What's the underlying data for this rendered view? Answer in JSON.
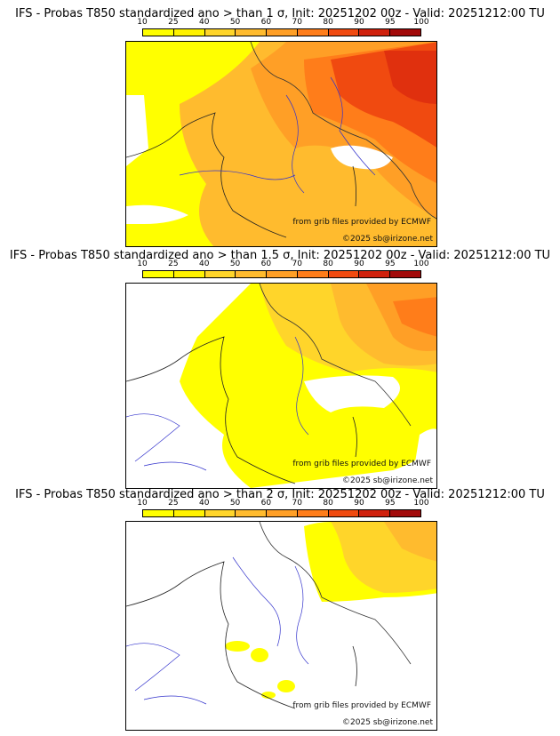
{
  "palette": [
    "#ffff00",
    "#fff200",
    "#ffd52a",
    "#ffbb2e",
    "#ff9f26",
    "#ff7d1a",
    "#f04a10",
    "#d0210d",
    "#a20a0a",
    "#6e0000"
  ],
  "colorbar_ticks": [
    "10",
    "25",
    "40",
    "50",
    "60",
    "70",
    "80",
    "90",
    "95",
    "100"
  ],
  "credits": {
    "source": "from grib files provided by ECMWF",
    "copyright": "©2025 sb@irizone.net"
  },
  "panels": [
    {
      "title": "IFS - Probas T850  standardized ano > than 1 σ, Init: 20251202 00z - Valid: 20251212:00 TU",
      "threshold_sigma": 1
    },
    {
      "title": "IFS - Probas T850  standardized ano > than 1.5 σ, Init: 20251202 00z - Valid: 20251212:00 TU",
      "threshold_sigma": 1.5
    },
    {
      "title": "IFS - Probas T850  standardized ano > than 2 σ, Init: 20251202 00z - Valid: 20251212:00 TU",
      "threshold_sigma": 2
    }
  ]
}
